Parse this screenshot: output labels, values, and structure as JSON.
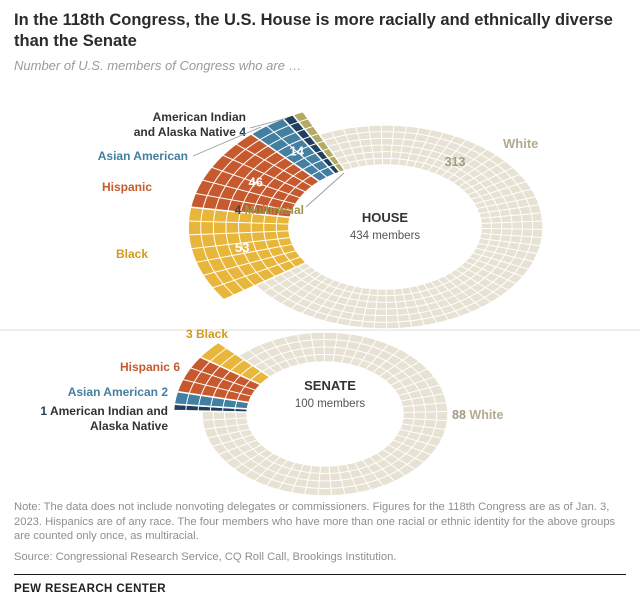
{
  "header": {
    "title": "In the 118th Congress, the U.S. House is more racially and ethnically diverse than the Senate",
    "subtitle": "Number of U.S. members of Congress who are …"
  },
  "footer": {
    "note": "Note: The data does not include nonvoting delegates or commissioners. Figures for the 118th Congress are as of Jan. 3, 2023. Hispanics are of any race. The four members who have more than one racial or ethnic identity for the above groups are counted only once, as multiracial.",
    "source": "Source: Congressional Research Service, CQ Roll Call, Brookings Institution.",
    "brand": "PEW RESEARCH CENTER"
  },
  "chart_data": [
    {
      "type": "waffle-donut",
      "chamber": "HOUSE",
      "members_label": "434 members",
      "total": 434,
      "segments": [
        {
          "label": "White",
          "value": 313,
          "color": "#e7e2d3",
          "text_color": "#b3aa90",
          "value_color": "#a49b85"
        },
        {
          "label": "Black",
          "value": 53,
          "color": "#e9b63c",
          "text_color": "#d09c1a",
          "value_color": "#ffffff"
        },
        {
          "label": "Hispanic",
          "value": 46,
          "color": "#c65a2e",
          "text_color": "#c65a2e",
          "value_color": "#ffffff"
        },
        {
          "label": "Asian American",
          "value": 14,
          "color": "#437fa0",
          "text_color": "#437fa0",
          "value_color": "#ffffff"
        },
        {
          "label": "American Indian and Alaska Native",
          "value": 4,
          "color": "#20405f",
          "text_color": "#333333",
          "value_color": "#20405f",
          "label_lines": [
            "American Indian",
            "and Alaska Native"
          ]
        },
        {
          "label": "Multiracial",
          "value": 4,
          "color": "#b3aa64",
          "text_color": "#9d9446",
          "value_color": "#444444"
        }
      ]
    },
    {
      "type": "waffle-donut",
      "chamber": "SENATE",
      "members_label": "100 members",
      "total": 100,
      "segments": [
        {
          "label": "White",
          "value": 88,
          "color": "#e7e2d3",
          "text_color": "#b3aa90",
          "value_color": "#a49b85"
        },
        {
          "label": "Black",
          "value": 3,
          "color": "#e9b63c",
          "text_color": "#d09c1a",
          "value_color": "#d09c1a"
        },
        {
          "label": "Hispanic",
          "value": 6,
          "color": "#c65a2e",
          "text_color": "#c65a2e",
          "value_color": "#c65a2e"
        },
        {
          "label": "Asian American",
          "value": 2,
          "color": "#437fa0",
          "text_color": "#437fa0",
          "value_color": "#437fa0"
        },
        {
          "label": "American Indian and Alaska Native",
          "value": 1,
          "color": "#20405f",
          "text_color": "#333333",
          "value_color": "#20405f",
          "label_lines": [
            "American Indian and",
            "Alaska Native"
          ]
        }
      ]
    }
  ]
}
